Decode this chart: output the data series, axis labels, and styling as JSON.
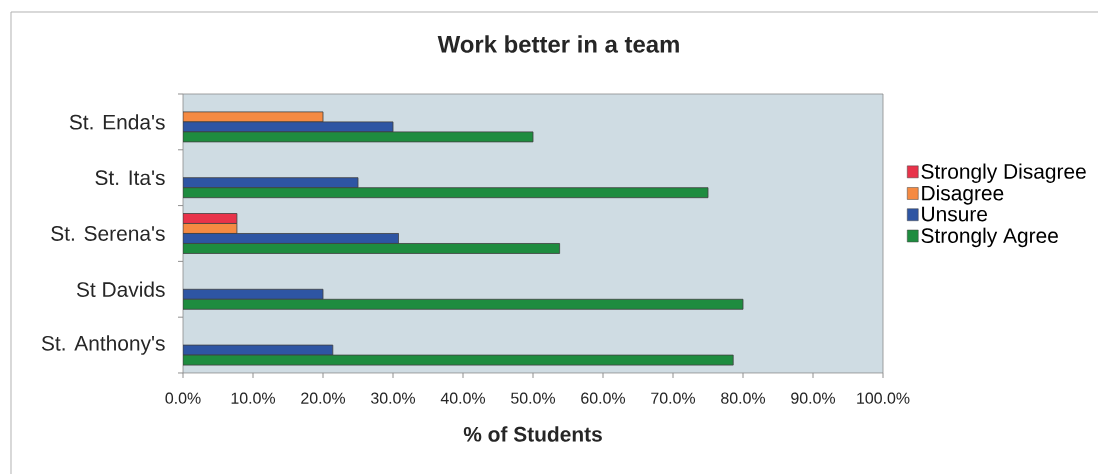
{
  "chart_data": {
    "type": "bar",
    "orientation": "horizontal",
    "title": "Work better in a team",
    "xlabel": "% of Students",
    "categories": [
      "St. Enda's",
      "St. Ita's",
      "St. Serena's",
      "St Davids",
      "St. Anthony's"
    ],
    "series": [
      {
        "name": "Strongly Disagree",
        "color": "#e8334a",
        "values": [
          null,
          null,
          7.7,
          null,
          null
        ]
      },
      {
        "name": "Disagree",
        "color": "#f58a42",
        "values": [
          20,
          null,
          7.7,
          null,
          null
        ]
      },
      {
        "name": "Unsure",
        "color": "#2e55a3",
        "values": [
          30,
          25,
          30.8,
          20,
          21.4
        ]
      },
      {
        "name": "Strongly Agree",
        "color": "#1e8c3f",
        "values": [
          50,
          75,
          53.8,
          80,
          78.6
        ]
      }
    ],
    "xlim": [
      0,
      100
    ],
    "xticks": [
      {
        "value": 0,
        "label": "0.0%"
      },
      {
        "value": 10,
        "label": "10.0%"
      },
      {
        "value": 20,
        "label": "20.0%"
      },
      {
        "value": 30,
        "label": "30.0%"
      },
      {
        "value": 40,
        "label": "40.0%"
      },
      {
        "value": 50,
        "label": "50.0%"
      },
      {
        "value": 60,
        "label": "60.0%"
      },
      {
        "value": 70,
        "label": "70.0%"
      },
      {
        "value": 80,
        "label": "80.0%"
      },
      {
        "value": 90,
        "label": "90.0%"
      },
      {
        "value": 100,
        "label": "100.0%"
      }
    ],
    "legend": "right"
  }
}
